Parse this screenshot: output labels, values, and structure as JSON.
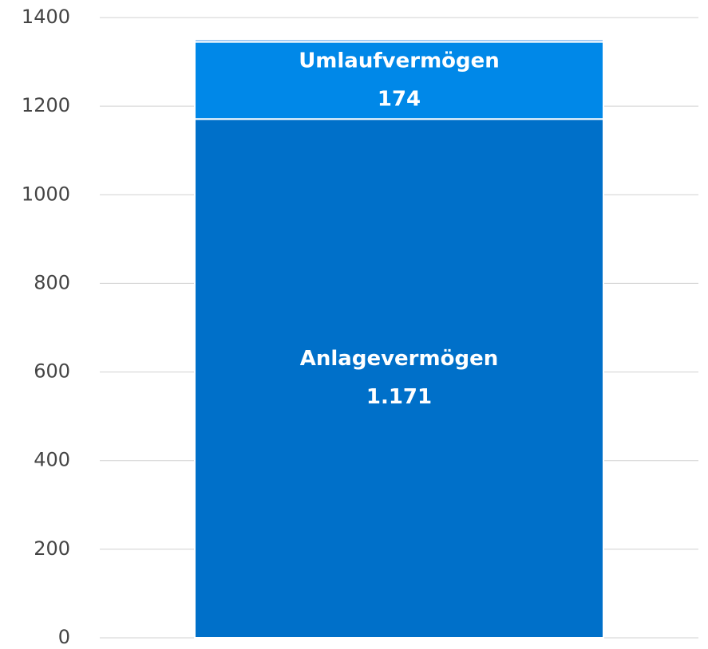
{
  "chart_data": {
    "type": "stacked_bar",
    "categories": [
      null
    ],
    "series": [
      {
        "name": "Anlagevermögen",
        "color": "#0070c9",
        "values": [
          1171
        ],
        "value_labels": [
          "1.171"
        ]
      },
      {
        "name": "Umlaufvermögen",
        "color": "#0088e8",
        "values": [
          174
        ]
      },
      {
        "name": null,
        "color": "#7fb6ee",
        "values": [
          6
        ]
      }
    ],
    "ylim": [
      0,
      1400
    ],
    "yticks": [
      0,
      200,
      400,
      600,
      800,
      1000,
      1200,
      1400
    ],
    "grid": true
  }
}
